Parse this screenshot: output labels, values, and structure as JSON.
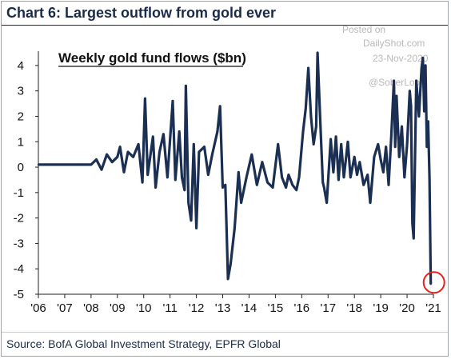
{
  "header": {
    "title": "Chart 6: Largest outflow from gold ever"
  },
  "watermark": {
    "line1": "Posted on",
    "line2": "DailyShot.com",
    "line3": "23-Nov-2020",
    "line4": "@SoberLook"
  },
  "source": "Source: BofA Global Investment Strategy, EPFR Global",
  "colors": {
    "series": "#1a2f52",
    "highlight": "#e8201c",
    "title": "#1a2b4a"
  },
  "chart_data": {
    "type": "line",
    "title": "Weekly gold fund flows ($bn)",
    "xlabel": "",
    "ylabel": "",
    "xlim": [
      2006.0,
      2021.0
    ],
    "ylim": [
      -5,
      4.5
    ],
    "yticks": [
      4,
      3,
      2,
      1,
      0,
      -1,
      -2,
      -3,
      -4,
      -5
    ],
    "ytick_labels": [
      "4",
      "3",
      "2",
      "1",
      "0",
      "-1",
      "-2",
      "-3",
      "-4",
      "-5"
    ],
    "xticks": [
      2006,
      2007,
      2008,
      2009,
      2010,
      2011,
      2012,
      2013,
      2014,
      2015,
      2016,
      2017,
      2018,
      2019,
      2020,
      2021
    ],
    "xtick_labels": [
      "'06",
      "'07",
      "'08",
      "'09",
      "'10",
      "'11",
      "'12",
      "'13",
      "'14",
      "'15",
      "'16",
      "'17",
      "'18",
      "'19",
      "'20",
      "'21"
    ],
    "grid": false,
    "annotations": [
      "red circle marking the record outflow in Nov 2020"
    ],
    "series": [
      {
        "points": [
          [
            2006.0,
            0.1
          ],
          [
            2006.5,
            0.1
          ],
          [
            2007.0,
            0.1
          ],
          [
            2007.5,
            0.1
          ],
          [
            2008.0,
            0.1
          ],
          [
            2008.2,
            0.3
          ],
          [
            2008.4,
            -0.1
          ],
          [
            2008.6,
            0.5
          ],
          [
            2008.8,
            0.2
          ],
          [
            2009.0,
            0.4
          ],
          [
            2009.1,
            0.8
          ],
          [
            2009.25,
            -0.2
          ],
          [
            2009.4,
            0.6
          ],
          [
            2009.6,
            0.4
          ],
          [
            2009.8,
            0.9
          ],
          [
            2009.95,
            -0.6
          ],
          [
            2010.05,
            2.7
          ],
          [
            2010.15,
            -0.3
          ],
          [
            2010.35,
            1.2
          ],
          [
            2010.45,
            -0.8
          ],
          [
            2010.6,
            0.6
          ],
          [
            2010.75,
            1.3
          ],
          [
            2010.9,
            -0.4
          ],
          [
            2011.1,
            2.6
          ],
          [
            2011.2,
            -0.5
          ],
          [
            2011.35,
            1.4
          ],
          [
            2011.45,
            -0.4
          ],
          [
            2011.55,
            -0.9
          ],
          [
            2011.6,
            3.2
          ],
          [
            2011.7,
            -1.4
          ],
          [
            2011.8,
            -2.1
          ],
          [
            2011.9,
            0.9
          ],
          [
            2012.0,
            -2.4
          ],
          [
            2012.1,
            0.6
          ],
          [
            2012.3,
            0.8
          ],
          [
            2012.45,
            -0.3
          ],
          [
            2012.6,
            0.5
          ],
          [
            2012.8,
            1.4
          ],
          [
            2012.9,
            2.4
          ],
          [
            2013.0,
            -0.8
          ],
          [
            2013.1,
            -0.7
          ],
          [
            2013.2,
            -4.4
          ],
          [
            2013.3,
            -3.8
          ],
          [
            2013.45,
            -2.4
          ],
          [
            2013.6,
            -0.2
          ],
          [
            2013.7,
            -1.4
          ],
          [
            2013.9,
            -0.4
          ],
          [
            2014.1,
            0.5
          ],
          [
            2014.3,
            -0.7
          ],
          [
            2014.5,
            0.2
          ],
          [
            2014.7,
            -0.6
          ],
          [
            2014.9,
            -0.8
          ],
          [
            2015.1,
            0.9
          ],
          [
            2015.25,
            -0.4
          ],
          [
            2015.4,
            -0.8
          ],
          [
            2015.5,
            -0.3
          ],
          [
            2015.65,
            -0.7
          ],
          [
            2015.8,
            -0.9
          ],
          [
            2015.9,
            -0.4
          ],
          [
            2016.05,
            1.4
          ],
          [
            2016.15,
            2.3
          ],
          [
            2016.25,
            3.9
          ],
          [
            2016.35,
            2.0
          ],
          [
            2016.45,
            0.9
          ],
          [
            2016.55,
            1.6
          ],
          [
            2016.6,
            4.5
          ],
          [
            2016.7,
            1.9
          ],
          [
            2016.8,
            -0.6
          ],
          [
            2016.85,
            -0.8
          ],
          [
            2016.95,
            -1.4
          ],
          [
            2017.1,
            1.1
          ],
          [
            2017.2,
            -0.2
          ],
          [
            2017.3,
            1.2
          ],
          [
            2017.4,
            -0.5
          ],
          [
            2017.5,
            0.9
          ],
          [
            2017.6,
            -0.4
          ],
          [
            2017.75,
            1.0
          ],
          [
            2017.85,
            -0.4
          ],
          [
            2018.0,
            0.4
          ],
          [
            2018.1,
            -0.3
          ],
          [
            2018.2,
            0.2
          ],
          [
            2018.35,
            -0.7
          ],
          [
            2018.5,
            -0.3
          ],
          [
            2018.6,
            -1.4
          ],
          [
            2018.75,
            0.4
          ],
          [
            2018.9,
            0.9
          ],
          [
            2019.0,
            0.3
          ],
          [
            2019.1,
            -0.2
          ],
          [
            2019.2,
            0.8
          ],
          [
            2019.3,
            -0.7
          ],
          [
            2019.4,
            1.2
          ],
          [
            2019.5,
            3.4
          ],
          [
            2019.55,
            0.8
          ],
          [
            2019.6,
            2.8
          ],
          [
            2019.7,
            0.4
          ],
          [
            2019.8,
            1.6
          ],
          [
            2019.9,
            -0.4
          ],
          [
            2020.0,
            0.9
          ],
          [
            2020.1,
            3.0
          ],
          [
            2020.15,
            2.4
          ],
          [
            2020.2,
            -2.2
          ],
          [
            2020.25,
            -2.8
          ],
          [
            2020.35,
            3.4
          ],
          [
            2020.45,
            2.0
          ],
          [
            2020.55,
            3.9
          ],
          [
            2020.6,
            4.3
          ],
          [
            2020.65,
            2.2
          ],
          [
            2020.7,
            4.0
          ],
          [
            2020.75,
            0.8
          ],
          [
            2020.8,
            1.8
          ],
          [
            2020.85,
            -0.4
          ],
          [
            2020.9,
            -4.6
          ]
        ]
      }
    ]
  }
}
